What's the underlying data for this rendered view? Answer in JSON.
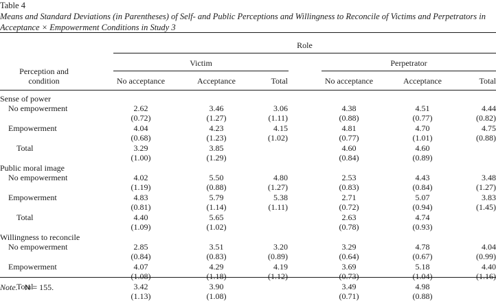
{
  "caption": {
    "label": "Table 4",
    "title": "Means and Standard Deviations (in Parentheses) of Self- and Public Perceptions and Willingness to Reconcile of Victims and Perpetrators in Acceptance × Empowerment Conditions in Study 3"
  },
  "header": {
    "stub": [
      "Perception and",
      "condition"
    ],
    "role": "Role",
    "groups": [
      "Victim",
      "Perpetrator"
    ],
    "columns": [
      "No acceptance",
      "Acceptance",
      "Total",
      "No acceptance",
      "Acceptance",
      "Total"
    ]
  },
  "sections": [
    {
      "title": "Sense of power",
      "rows": [
        {
          "label": "No empowerment",
          "means": [
            "2.62",
            "3.46",
            "3.06",
            "4.38",
            "4.51",
            "4.44"
          ],
          "sds": [
            "(0.72)",
            "(1.27)",
            "(1.11)",
            "(0.88)",
            "(0.77)",
            "(0.82)"
          ]
        },
        {
          "label": "Empowerment",
          "means": [
            "4.04",
            "4.23",
            "4.15",
            "4.81",
            "4.70",
            "4.75"
          ],
          "sds": [
            "(0.68)",
            "(1.23)",
            "(1.02)",
            "(0.77)",
            "(1.01)",
            "(0.88)"
          ]
        },
        {
          "label": "Total",
          "means": [
            "3.29",
            "3.85",
            "",
            "4.60",
            "4.60",
            ""
          ],
          "sds": [
            "(1.00)",
            "(1.29)",
            "",
            "(0.84)",
            "(0.89)",
            ""
          ]
        }
      ]
    },
    {
      "title": "Public moral image",
      "rows": [
        {
          "label": "No empowerment",
          "means": [
            "4.02",
            "5.50",
            "4.80",
            "2.53",
            "4.43",
            "3.48"
          ],
          "sds": [
            "(1.19)",
            "(0.88)",
            "(1.27)",
            "(0.83)",
            "(0.84)",
            "(1.27)"
          ]
        },
        {
          "label": "Empowerment",
          "means": [
            "4.83",
            "5.79",
            "5.38",
            "2.71",
            "5.07",
            "3.83"
          ],
          "sds": [
            "(0.81)",
            "(1.14)",
            "(1.11)",
            "(0.72)",
            "(0.94)",
            "(1.45)"
          ]
        },
        {
          "label": "Total",
          "means": [
            "4.40",
            "5.65",
            "",
            "2.63",
            "4.74",
            ""
          ],
          "sds": [
            "(1.09)",
            "(1.02)",
            "",
            "(0.78)",
            "(0.93)",
            ""
          ]
        }
      ]
    },
    {
      "title": "Willingness to reconcile",
      "rows": [
        {
          "label": "No empowerment",
          "means": [
            "2.85",
            "3.51",
            "3.20",
            "3.29",
            "4.78",
            "4.04"
          ],
          "sds": [
            "(0.84)",
            "(0.83)",
            "(0.89)",
            "(0.64)",
            "(0.67)",
            "(0.99)"
          ]
        },
        {
          "label": "Empowerment",
          "means": [
            "4.07",
            "4.29",
            "4.19",
            "3.69",
            "5.18",
            "4.40"
          ],
          "sds": [
            "(1.08)",
            "(1.18)",
            "(1.12)",
            "(0.73)",
            "(1.04)",
            "(1.16)"
          ]
        },
        {
          "label": "Total",
          "means": [
            "3.42",
            "3.90",
            "",
            "3.49",
            "4.98",
            ""
          ],
          "sds": [
            "(1.13)",
            "(1.08)",
            "",
            "(0.71)",
            "(0.88)",
            ""
          ]
        }
      ]
    }
  ],
  "note": {
    "label": "Note.",
    "text": "N = 155."
  }
}
